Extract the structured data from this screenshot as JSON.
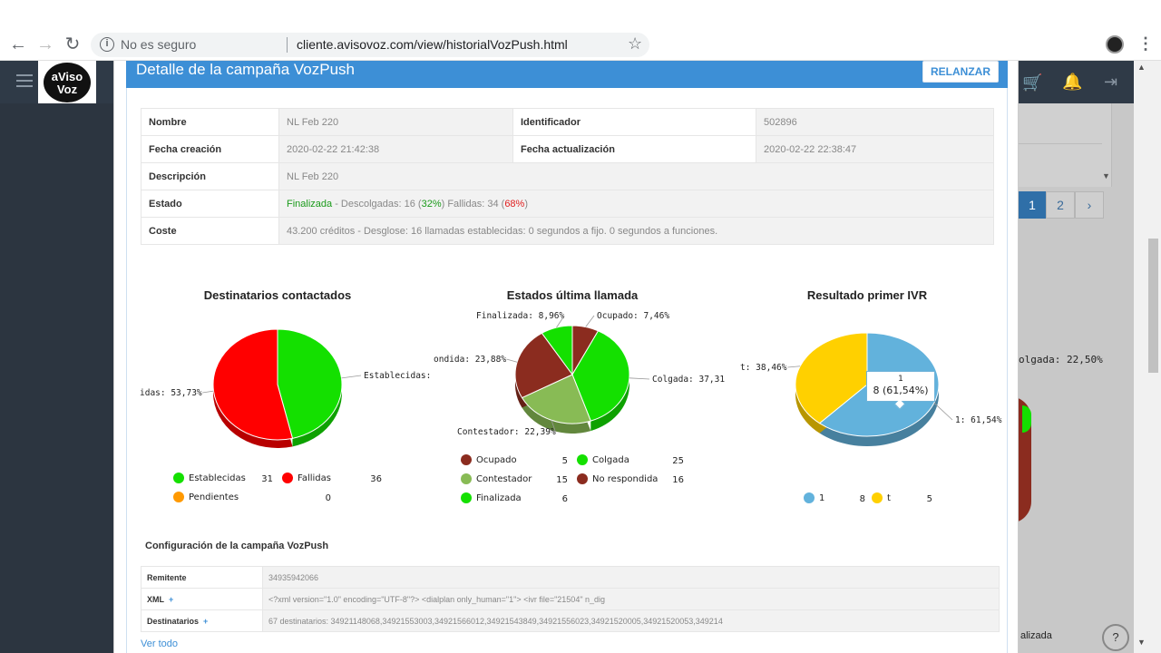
{
  "browser": {
    "security": "No es seguro",
    "url": "cliente.avisovoz.com/view/historialVozPush.html"
  },
  "background": {
    "logo_text": "aViso Voz",
    "pager": [
      "1",
      "2",
      "›"
    ],
    "right_label": "olgada: 22,50%",
    "bottom_label": "alizada",
    "help": "?"
  },
  "modal": {
    "title": "Detalle de la campaña VozPush",
    "relanzar": "RELANZAR",
    "info": {
      "nombre_label": "Nombre",
      "nombre": "NL Feb 220",
      "identificador_label": "Identificador",
      "identificador": "502896",
      "fecha_creacion_label": "Fecha creación",
      "fecha_creacion": "2020-02-22 21:42:38",
      "fecha_actualizacion_label": "Fecha actualización",
      "fecha_actualizacion": "2020-02-22 22:38:47",
      "descripcion_label": "Descripción",
      "descripcion": "NL Feb 220",
      "estado_label": "Estado",
      "estado_status": "Finalizada",
      "estado_part1": " - Descolgadas: 16 (",
      "estado_pct1": "32%",
      "estado_part2": ") Fallidas: 34 (",
      "estado_pct2": "68%",
      "estado_part3": ")",
      "coste_label": "Coste",
      "coste": "43.200 créditos - Desglose: 16 llamadas establecidas: 0 segundos a fijo. 0 segundos a funciones."
    },
    "config": {
      "title": "Configuración de la campaña VozPush",
      "remitente_label": "Remitente",
      "remitente": "34935942066",
      "xml_label": "XML",
      "xml": "<?xml version=\"1.0\" encoding=\"UTF-8\"?> <dialplan only_human=\"1\"> <ivr file=\"21504\" n_dig",
      "destinatarios_label": "Destinatarios",
      "destinatarios": "67 destinatarios: 34921148068,34921553003,34921566012,34921543849,34921556023,34921520005,34921520053,349214",
      "plus": "+",
      "ver_todo": "Ver todo"
    }
  },
  "chart_data": [
    {
      "type": "pie",
      "title": "Destinatarios contactados",
      "slices": [
        {
          "name": "Establecidas",
          "value": 31,
          "label": "Establecidas:",
          "color": "#14e000"
        },
        {
          "name": "Fallidas",
          "value": 36,
          "label": "idas: 53,73%",
          "color": "#ff0000"
        },
        {
          "name": "Pendientes",
          "value": 0,
          "color": "#ff9900"
        }
      ],
      "legend": [
        {
          "name": "Establecidas",
          "value": "31",
          "color": "#14e000"
        },
        {
          "name": "Fallidas",
          "value": "36",
          "color": "#ff0000"
        },
        {
          "name": "Pendientes",
          "value": "0",
          "color": "#ff9900"
        }
      ]
    },
    {
      "type": "pie",
      "title": "Estados última llamada",
      "slices": [
        {
          "name": "Ocupado",
          "value": 5,
          "label": "Ocupado: 7,46%",
          "color": "#8b2c1f"
        },
        {
          "name": "Colgada",
          "value": 25,
          "label": "Colgada: 37,31",
          "color": "#14e000"
        },
        {
          "name": "Contestador",
          "value": 15,
          "label": "Contestador: 22,39%",
          "color": "#88bb55"
        },
        {
          "name": "No respondida",
          "value": 16,
          "label": "ondida: 23,88%",
          "color": "#8b2c1f"
        },
        {
          "name": "Finalizada",
          "value": 6,
          "label": "Finalizada: 8,96%",
          "color": "#14e000"
        }
      ],
      "legend": [
        {
          "name": "Ocupado",
          "value": "5",
          "color": "#8b2c1f"
        },
        {
          "name": "Colgada",
          "value": "25",
          "color": "#14e000"
        },
        {
          "name": "Contestador",
          "value": "15",
          "color": "#88bb55"
        },
        {
          "name": "No respondida",
          "value": "16",
          "color": "#8b2c1f"
        },
        {
          "name": "Finalizada",
          "value": "6",
          "color": "#14e000"
        }
      ]
    },
    {
      "type": "pie",
      "title": "Resultado primer IVR",
      "slices": [
        {
          "name": "1",
          "value": 8,
          "label": "1: 61,54%",
          "color": "#62b2dc"
        },
        {
          "name": "t",
          "value": 5,
          "label": "t: 38,46%",
          "color": "#ffd000"
        }
      ],
      "legend": [
        {
          "name": "1",
          "value": "8",
          "color": "#62b2dc"
        },
        {
          "name": "t",
          "value": "5",
          "color": "#ffd000"
        }
      ],
      "tooltip": {
        "name": "1",
        "text": "8 (61,54%)"
      }
    }
  ]
}
